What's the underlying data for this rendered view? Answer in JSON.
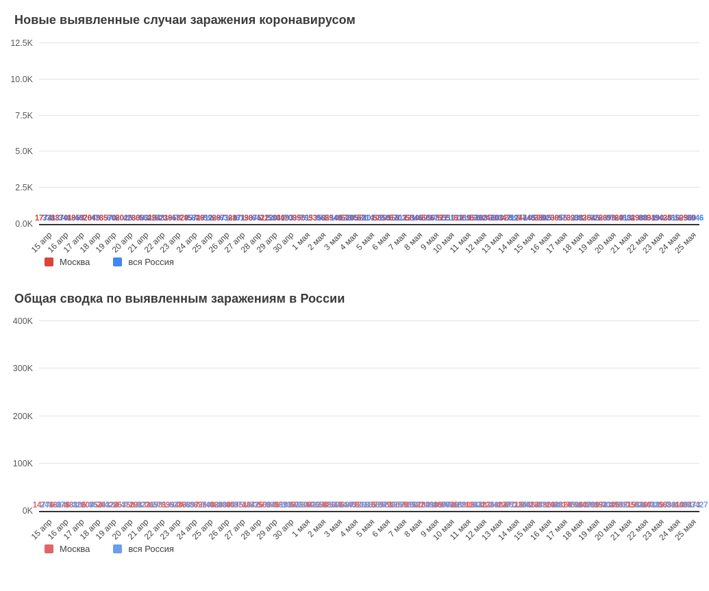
{
  "accent_colors": {
    "daily_moscow": "#db4437",
    "daily_russia": "#4285f4",
    "total_moscow": "#e06666",
    "total_russia": "#6d9eeb",
    "axis_line": "#333333",
    "gridline": "#e2e2e2"
  },
  "chart_data": [
    {
      "type": "bar",
      "title": "Новые выявленные случаи заражения коронавирусом",
      "categories": [
        "15 апр",
        "16 апр",
        "17 апр",
        "18 апр",
        "19 апр",
        "20 апр",
        "21 апр",
        "22 апр",
        "23 апр",
        "24 апр",
        "25 апр",
        "26 апр",
        "27 апр",
        "28 апр",
        "29 апр",
        "30 апр",
        "1 мая",
        "2 мая",
        "3 мая",
        "4 мая",
        "5 мая",
        "6 мая",
        "7 мая",
        "8 мая",
        "9 мая",
        "10 мая",
        "11 мая",
        "12 мая",
        "13 мая",
        "14 мая",
        "15 мая",
        "16 мая",
        "17 мая",
        "18 мая",
        "19 мая",
        "20 мая",
        "21 мая",
        "22 мая",
        "23 мая",
        "24 мая",
        "25 мая"
      ],
      "series": [
        {
          "name": "Москва",
          "color": "#db4437",
          "values": [
            1774,
            1370,
            1959,
            2649,
            3570,
            2026,
            3083,
            2548,
            1959,
            2957,
            2612,
            2971,
            2871,
            3075,
            2220,
            3093,
            3561,
            5358,
            5948,
            5795,
            5714,
            5858,
            6703,
            5846,
            5667,
            5551,
            6169,
            5392,
            4703,
            4712,
            4748,
            3505,
            3855,
            3238,
            3545,
            2699,
            2913,
            2988,
            3190,
            2516,
            2560
          ]
        },
        {
          "name": "вся Россия",
          "color": "#4285f4",
          "values": [
            3388,
            3448,
            4070,
            4785,
            6060,
            4268,
            5642,
            5236,
            4774,
            5849,
            5966,
            6361,
            6198,
            6411,
            5841,
            7099,
            7933,
            9623,
            10633,
            10581,
            10102,
            10559,
            11231,
            10699,
            10817,
            11012,
            11656,
            10899,
            10028,
            9974,
            10598,
            9200,
            9709,
            8926,
            9263,
            8764,
            8849,
            8894,
            9434,
            8599,
            8946
          ]
        }
      ],
      "yticks": [
        {
          "label": "0.0K",
          "value": 0
        },
        {
          "label": "2.5K",
          "value": 2500
        },
        {
          "label": "5.0K",
          "value": 5000
        },
        {
          "label": "7.5K",
          "value": 7500
        },
        {
          "label": "10.0K",
          "value": 10000
        },
        {
          "label": "12.5K",
          "value": 12500
        }
      ],
      "ylim": [
        0,
        12500
      ],
      "grid": true,
      "value_labels": true,
      "legend_position": "bottom-left"
    },
    {
      "type": "bar",
      "title": "Общая сводка по выявленным заражениям в России",
      "categories": [
        "15 апр",
        "16 апр",
        "17 апр",
        "18 апр",
        "19 апр",
        "20 апр",
        "21 апр",
        "22 апр",
        "23 апр",
        "24 апр",
        "25 апр",
        "26 апр",
        "27 апр",
        "28 апр",
        "29 апр",
        "30 апр",
        "1 мая",
        "2 мая",
        "3 мая",
        "4 мая",
        "5 мая",
        "6 мая",
        "7 мая",
        "8 мая",
        "9 мая",
        "10 мая",
        "11 мая",
        "12 мая",
        "13 мая",
        "14 мая",
        "15 мая",
        "16 мая",
        "17 мая",
        "18 мая",
        "19 мая",
        "20 мая",
        "21 мая",
        "22 мая",
        "23 мая",
        "24 мая",
        "25 мая"
      ],
      "series": [
        {
          "name": "Москва",
          "color": "#e06666",
          "values": [
            14776,
            16146,
            18105,
            20754,
            24324,
            26350,
            29433,
            31981,
            33940,
            36897,
            39509,
            42480,
            45351,
            48426,
            50646,
            53739,
            57300,
            62658,
            68606,
            74401,
            80115,
            85973,
            92676,
            98522,
            104189,
            109740,
            115909,
            121301,
            126004,
            130716,
            135464,
            138969,
            142824,
            146062,
            149607,
            152306,
            155219,
            158207,
            161397,
            163913,
            166473
          ]
        },
        {
          "name": "вся Россия",
          "color": "#6d9eeb",
          "values": [
            24490,
            27938,
            32008,
            36793,
            42853,
            47121,
            52763,
            57999,
            62773,
            68622,
            74588,
            80949,
            87147,
            93558,
            99399,
            106498,
            114431,
            124054,
            134687,
            145268,
            155370,
            165929,
            177160,
            187859,
            198676,
            209688,
            221344,
            232243,
            242271,
            252245,
            262843,
            272043,
            281752,
            290678,
            299941,
            308705,
            317554,
            326448,
            335882,
            344481,
            353427
          ]
        }
      ],
      "yticks": [
        {
          "label": "0K",
          "value": 0
        },
        {
          "label": "100K",
          "value": 100000
        },
        {
          "label": "200K",
          "value": 200000
        },
        {
          "label": "300K",
          "value": 300000
        },
        {
          "label": "400K",
          "value": 400000
        }
      ],
      "ylim": [
        0,
        400000
      ],
      "grid": true,
      "value_labels": true,
      "legend_position": "bottom-left"
    }
  ]
}
